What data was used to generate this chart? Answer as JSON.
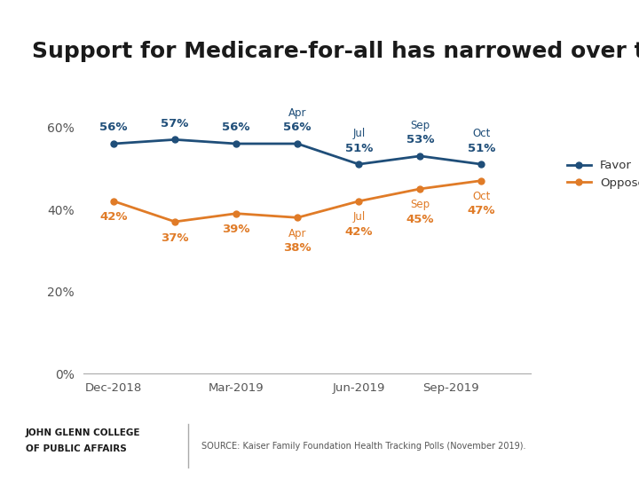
{
  "title": "Support for Medicare-for-all has narrowed over time",
  "title_fontsize": 18,
  "favor_color": "#1f4e79",
  "oppose_color": "#e07b27",
  "header_bar_color": "#c0392b",
  "background_color": "#ffffff",
  "x_positions": [
    0,
    1,
    2,
    3,
    4,
    5,
    6
  ],
  "x_tick_positions": [
    0,
    2,
    4,
    5.5
  ],
  "x_tick_labels": [
    "Dec-2018",
    "Mar-2019",
    "Jun-2019",
    "Sep-2019"
  ],
  "favor_values": [
    56,
    57,
    56,
    56,
    51,
    53,
    51
  ],
  "oppose_values": [
    42,
    37,
    39,
    38,
    42,
    45,
    47
  ],
  "favor_labels": [
    "56%",
    "57%",
    "56%",
    "56%",
    "51%",
    "53%",
    "51%"
  ],
  "oppose_labels": [
    "42%",
    "37%",
    "39%",
    "38%",
    "42%",
    "45%",
    "47%"
  ],
  "favor_month_labels": [
    "",
    "",
    "",
    "Apr",
    "Jul",
    "Sep",
    "Oct"
  ],
  "oppose_month_labels": [
    "",
    "",
    "",
    "Apr",
    "Jul",
    "Sep",
    "Oct"
  ],
  "ylim": [
    0,
    70
  ],
  "yticks": [
    0,
    20,
    40,
    60
  ],
  "ytick_labels": [
    "0%",
    "20%",
    "40%",
    "60%"
  ],
  "legend_favor": "Favor",
  "legend_oppose": "Oppose",
  "source_text": "SOURCE: Kaiser Family Foundation Health Tracking Polls (November 2019).",
  "college_line1": "JOHN GLENN COLLEGE",
  "college_line2": "OF PUBLIC AFFAIRS"
}
